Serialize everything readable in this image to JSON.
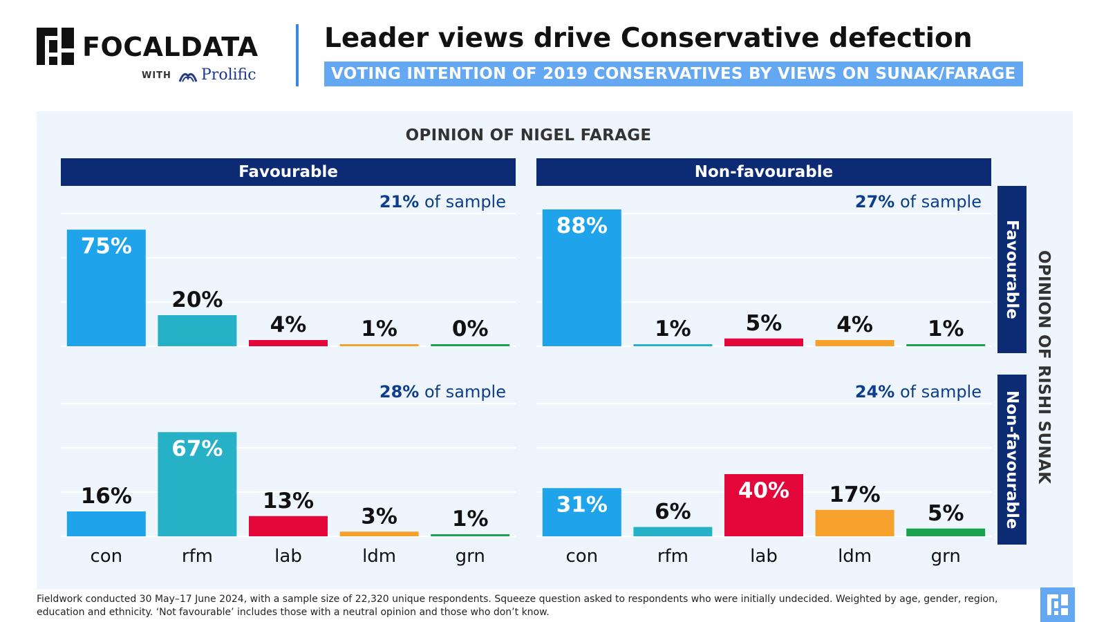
{
  "brand": {
    "name": "FOCALDATA",
    "with": "WITH",
    "partner": "Prolific"
  },
  "header": {
    "title": "Leader views drive Conservative defection",
    "subtitle": "VOTING INTENTION OF 2019 CONSERVATIVES BY VIEWS ON SUNAK/FARAGE"
  },
  "farage_title": "OPINION OF NIGEL FARAGE",
  "sunak_title": "OPINION OF RISHI SUNAK",
  "columns": [
    "Favourable",
    "Non-favourable"
  ],
  "rows": [
    "Favourable",
    "Non-favourable"
  ],
  "footnote": "Fieldwork conducted 30 May–17 June 2024, with a sample size of 22,320 unique respondents. Squeeze question asked to respondents who were initially undecided. Weighted by age, gender, region, education and ethnicity. ‘Not favourable’ includes those with a neutral opinion and those who don’t know.",
  "colors": {
    "con": "#1fa3ea",
    "rfm": "#27b1c6",
    "lab": "#e3073a",
    "ldm": "#f6a12b",
    "grn": "#1aa34e",
    "header_bg": "#0c2b74",
    "sample_text": "#0c3e8c"
  },
  "chart_data": {
    "type": "bar",
    "categories": [
      "con",
      "rfm",
      "lab",
      "ldm",
      "grn"
    ],
    "ylim": [
      0,
      100
    ],
    "grid": true,
    "panels": [
      {
        "farage": "Favourable",
        "sunak": "Favourable",
        "sample_pct": "21%",
        "sample_label": "of sample",
        "values": [
          75,
          20,
          4,
          1,
          0
        ]
      },
      {
        "farage": "Non-favourable",
        "sunak": "Favourable",
        "sample_pct": "27%",
        "sample_label": "of sample",
        "values": [
          88,
          1,
          5,
          4,
          1
        ]
      },
      {
        "farage": "Favourable",
        "sunak": "Non-favourable",
        "sample_pct": "28%",
        "sample_label": "of sample",
        "values": [
          16,
          67,
          13,
          3,
          1
        ]
      },
      {
        "farage": "Non-favourable",
        "sunak": "Non-favourable",
        "sample_pct": "24%",
        "sample_label": "of sample",
        "values": [
          31,
          6,
          40,
          17,
          5
        ]
      }
    ]
  }
}
